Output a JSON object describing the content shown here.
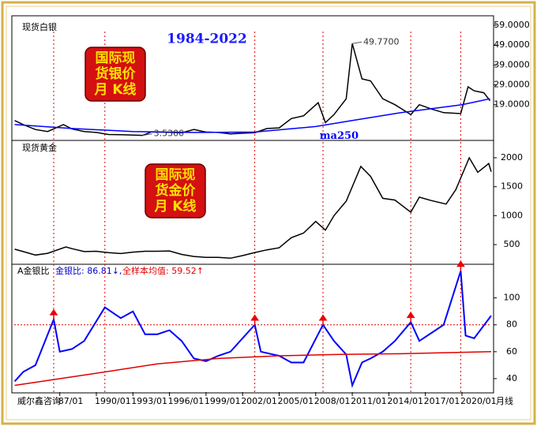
{
  "chart_data": [
    {
      "type": "line",
      "title": "现货白银",
      "subtitle": "1984-2022",
      "badge": [
        "国际现",
        "货银价",
        "月 K线"
      ],
      "xlim": [
        1983.26,
        2022.4
      ],
      "ylim": [
        1,
        63
      ],
      "yticks": [
        {
          "value": 19,
          "label": "19.0000"
        },
        {
          "value": 29,
          "label": "29.0000"
        },
        {
          "value": 39,
          "label": "39.0000"
        },
        {
          "value": 49,
          "label": "49.0000"
        },
        {
          "value": 59,
          "label": "59.0000"
        }
      ],
      "series": [
        {
          "color": "#000000",
          "x": [
            1983.3,
            1984,
            1985,
            1986,
            1987.3,
            1988,
            1989,
            1990,
            1991,
            1992,
            1993.8,
            1994.5,
            1995,
            1996,
            1997,
            1998,
            1999,
            2000,
            2001,
            2002,
            2003,
            2004,
            2005,
            2006,
            2007,
            2008.2,
            2008.8,
            2009.5,
            2010.5,
            2011,
            2011.8,
            2012.5,
            2013.5,
            2014.5,
            2015.8,
            2016.5,
            2017.5,
            2018.5,
            2019.9,
            2020.5,
            2021,
            2021.8,
            2022.3
          ],
          "values": [
            11,
            9,
            6.5,
            5.5,
            9,
            6.8,
            5.5,
            5,
            4,
            3.9,
            3.53,
            5.3,
            5.2,
            5.1,
            4.8,
            6.5,
            5.2,
            5,
            4.3,
            4.6,
            4.9,
            7,
            7.3,
            12,
            13.4,
            20,
            10,
            14,
            22,
            49.77,
            32,
            31,
            22,
            19,
            14,
            19,
            16.8,
            15,
            14.5,
            28,
            26,
            25,
            21
          ]
        },
        {
          "name": "ma250",
          "color": "#0000ff",
          "x": [
            1983.3,
            1988,
            1993,
            1998,
            2003,
            2008,
            2011,
            2015,
            2020,
            2022.3
          ],
          "values": [
            9,
            7,
            5.5,
            5,
            5.2,
            8,
            11,
            15,
            19,
            22
          ]
        }
      ],
      "annotations": [
        {
          "text": "49.7700",
          "x": 2011,
          "y": 49.77
        },
        {
          "text": "3.5300",
          "x": 1993.8,
          "y": 3.53
        }
      ]
    },
    {
      "type": "line",
      "title": "现货黄金",
      "badge": [
        "国际现",
        "货金价",
        "月 K线"
      ],
      "xlim": [
        1983.26,
        2022.4
      ],
      "ylim": [
        160,
        2300
      ],
      "yticks": [
        500,
        1000,
        1500,
        2000
      ],
      "series": [
        {
          "color": "#000000",
          "x": [
            1983.3,
            1984,
            1985,
            1986,
            1987.5,
            1988,
            1989,
            1990,
            1991,
            1992,
            1993,
            1994,
            1995,
            1996,
            1997,
            1998,
            1999,
            2000,
            2001,
            2002,
            2003,
            2004,
            2005,
            2006,
            2007,
            2008,
            2008.8,
            2009.5,
            2010.5,
            2011.7,
            2012.5,
            2013.5,
            2014.5,
            2015.8,
            2016.5,
            2017.5,
            2018.7,
            2019.5,
            2020.6,
            2021.3,
            2022.2,
            2022.4
          ],
          "values": [
            420,
            380,
            320,
            350,
            460,
            430,
            380,
            385,
            360,
            345,
            370,
            385,
            385,
            390,
            330,
            295,
            280,
            280,
            265,
            310,
            363,
            410,
            445,
            620,
            700,
            900,
            750,
            1000,
            1250,
            1850,
            1680,
            1300,
            1270,
            1060,
            1320,
            1260,
            1200,
            1450,
            2000,
            1750,
            1900,
            1760
          ]
        }
      ]
    },
    {
      "type": "line",
      "title": "A金银比",
      "current": "金银比: 86.81↓,",
      "mean_label": "全样本均值: 59.52↑",
      "xlim": [
        1983.26,
        2022.4
      ],
      "ylim": [
        30,
        125
      ],
      "yticks": [
        40,
        60,
        80,
        100
      ],
      "xticks": [
        {
          "value": 1987,
          "label": "87/01"
        },
        {
          "value": 1990,
          "label": "1990/01"
        },
        {
          "value": 1993,
          "label": "1993/01"
        },
        {
          "value": 1996,
          "label": "1996/01"
        },
        {
          "value": 1999,
          "label": "1999/01"
        },
        {
          "value": 2002,
          "label": "2002/01"
        },
        {
          "value": 2005,
          "label": "2005/01"
        },
        {
          "value": 2008,
          "label": "2008/01"
        },
        {
          "value": 2011,
          "label": "2011/01"
        },
        {
          "value": 2014,
          "label": "2014/01"
        },
        {
          "value": 2017,
          "label": "2017/01"
        },
        {
          "value": 2020,
          "label": "2020/01"
        }
      ],
      "x_label": "月线",
      "source": "威尔鑫咨询",
      "reference_line": 80,
      "event_lines": [
        1986.5,
        1990.7,
        2003,
        2008.6,
        2015.8,
        2019.9
      ],
      "arrows": [
        {
          "x": 1986.5,
          "y": 84
        },
        {
          "x": 2003,
          "y": 80
        },
        {
          "x": 2008.6,
          "y": 80
        },
        {
          "x": 2015.8,
          "y": 82
        },
        {
          "x": 2019.9,
          "y": 120
        }
      ],
      "series": [
        {
          "color": "#0000ff",
          "x": [
            1983.3,
            1984,
            1985,
            1986.5,
            1987,
            1988,
            1989,
            1990.7,
            1991.5,
            1992,
            1993,
            1994,
            1995,
            1996,
            1997,
            1998,
            1999,
            2000,
            2001,
            2003,
            2003.5,
            2004.5,
            2005,
            2006,
            2007,
            2008.6,
            2009.5,
            2010.5,
            2011,
            2011.8,
            2012.5,
            2013.5,
            2014.5,
            2015.8,
            2016.5,
            2017.5,
            2018.5,
            2019.9,
            2020.3,
            2021,
            2022.4
          ],
          "values": [
            38,
            45,
            50,
            84,
            60,
            62,
            68,
            93,
            88,
            85,
            90,
            73,
            73,
            76,
            68,
            55,
            53,
            57,
            60,
            80,
            60,
            58,
            57,
            52,
            52,
            80,
            68,
            58,
            35,
            52,
            55,
            60,
            68,
            82,
            68,
            74,
            80,
            120,
            72,
            70,
            86.81
          ]
        },
        {
          "color": "#e00000",
          "x": [
            1983.3,
            1990,
            1995,
            2000,
            2005,
            2010,
            2015,
            2022.4
          ],
          "values": [
            35,
            44,
            51,
            55,
            57,
            58,
            58.5,
            60
          ]
        }
      ]
    }
  ]
}
